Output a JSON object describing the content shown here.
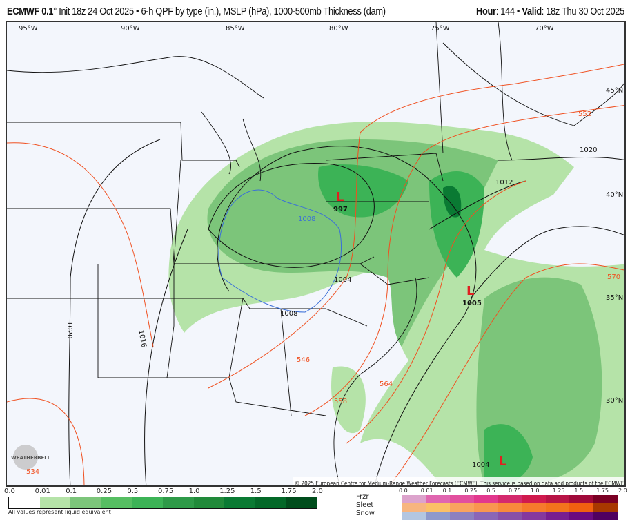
{
  "header": {
    "model": "ECMWF 0.1",
    "degree": "°",
    "init": " Init 18z 24 Oct 2025 • 6-h QPF by type (in.), MSLP (hPa), 1000-500mb Thickness (dam)",
    "hour_label": "Hour",
    "hour": ": 144 • ",
    "valid_label": "Valid",
    "valid": ": 18z Thu 30 Oct 2025"
  },
  "map": {
    "longitudes": [
      "95°W",
      "90°W",
      "85°W",
      "80°W",
      "75°W",
      "70°W"
    ],
    "latitudes": [
      "45°N",
      "40°N",
      "35°N",
      "30°N"
    ],
    "isobar_labels": [
      "1020",
      "1012",
      "1008",
      "1004",
      "1008",
      "1020",
      "1016",
      "1005",
      "997",
      "1004"
    ],
    "thickness_labels": [
      "552",
      "570",
      "546",
      "558",
      "564",
      "534"
    ],
    "lows": [
      "L",
      "L",
      "L"
    ],
    "copyright": "© 2025 European Centre for Medium-Range Weather Forecasts (ECMWF). This service is based on data and products of the ECMWF.",
    "logo": "WEATHERBELL"
  },
  "legend": {
    "rain_ticks": [
      "0.0",
      "0.01",
      "0.1",
      "0.25",
      "0.5",
      "0.75",
      "1.0",
      "1.25",
      "1.5",
      "1.75",
      "2.0"
    ],
    "rain_colors": [
      "#ffffff",
      "#b5e3a8",
      "#7cc57a",
      "#56be62",
      "#3cb356",
      "#2e9a48",
      "#218a3a",
      "#0a7a33",
      "#036828",
      "#004d1c"
    ],
    "note": "All values represent liquid equivalent",
    "ptype_ticks": [
      "0.0",
      "0.01",
      "0.1",
      "0.25",
      "0.5",
      "0.75",
      "1.0",
      "1.25",
      "1.5",
      "1.75",
      "2.0"
    ],
    "types": [
      {
        "label": "Frzr",
        "colors": [
          "#dca3cc",
          "#e066b0",
          "#e24f9e",
          "#e2388e",
          "#d42a6e",
          "#d01a4e",
          "#b81446",
          "#a00a3a",
          "#7a0024"
        ]
      },
      {
        "label": "Sleet",
        "colors": [
          "#f7b57e",
          "#fbc066",
          "#f9a35e",
          "#f99650",
          "#f88a3c",
          "#f67a2c",
          "#f3731c",
          "#f06010",
          "#a83800"
        ]
      },
      {
        "label": "Snow",
        "colors": [
          "#b3c6e0",
          "#8e99cb",
          "#8c80bf",
          "#8a66b6",
          "#8850a8",
          "#85389e",
          "#781e90",
          "#6a0a80",
          "#500060"
        ]
      }
    ]
  }
}
